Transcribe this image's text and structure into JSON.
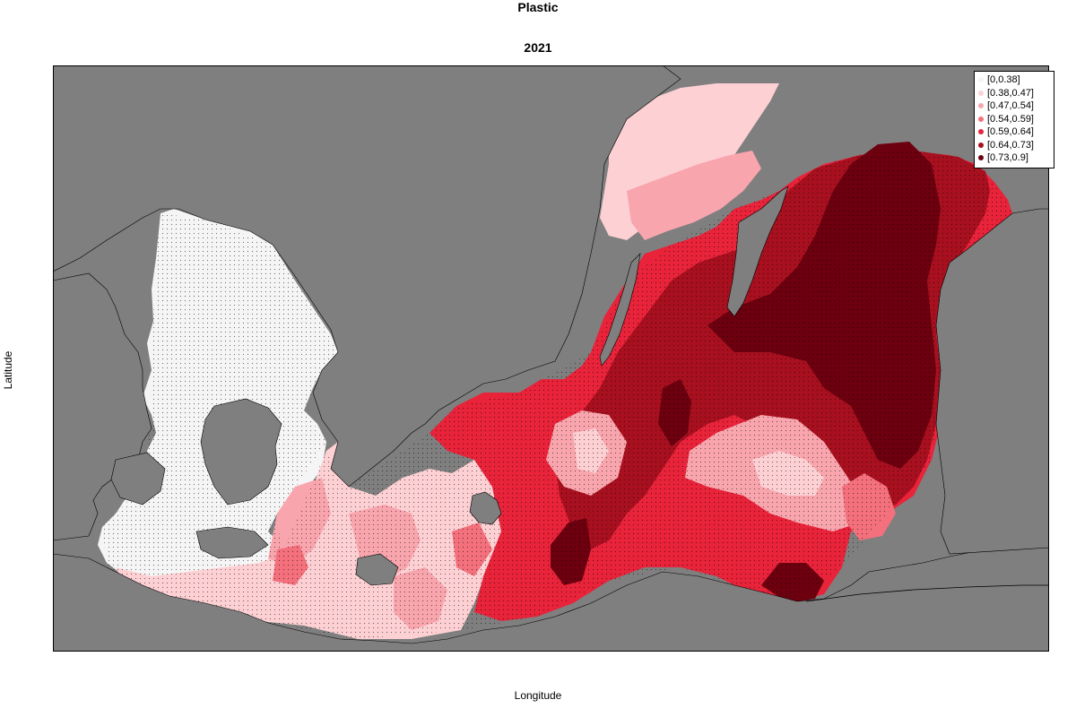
{
  "figure": {
    "title": "Plastic",
    "subtitle": "2021",
    "xlabel": "Longitude",
    "ylabel": "Latitude"
  },
  "colors": {
    "land": "#7f7f7f",
    "sea_background": "#ffffff",
    "coast_line": "#000000"
  },
  "legend": {
    "placement": "top-right",
    "items": [
      {
        "label": "[0,0.38]",
        "color": "#f5f5f5"
      },
      {
        "label": "[0.38,0.47]",
        "color": "#fdd0d4"
      },
      {
        "label": "[0.47,0.54]",
        "color": "#f9a5ad"
      },
      {
        "label": "[0.54,0.59]",
        "color": "#f3707c"
      },
      {
        "label": "[0.59,0.64]",
        "color": "#e8233a"
      },
      {
        "label": "[0.64,0.73]",
        "color": "#a8101f"
      },
      {
        "label": "[0.73,0.9]",
        "color": "#6d000f"
      }
    ]
  }
}
